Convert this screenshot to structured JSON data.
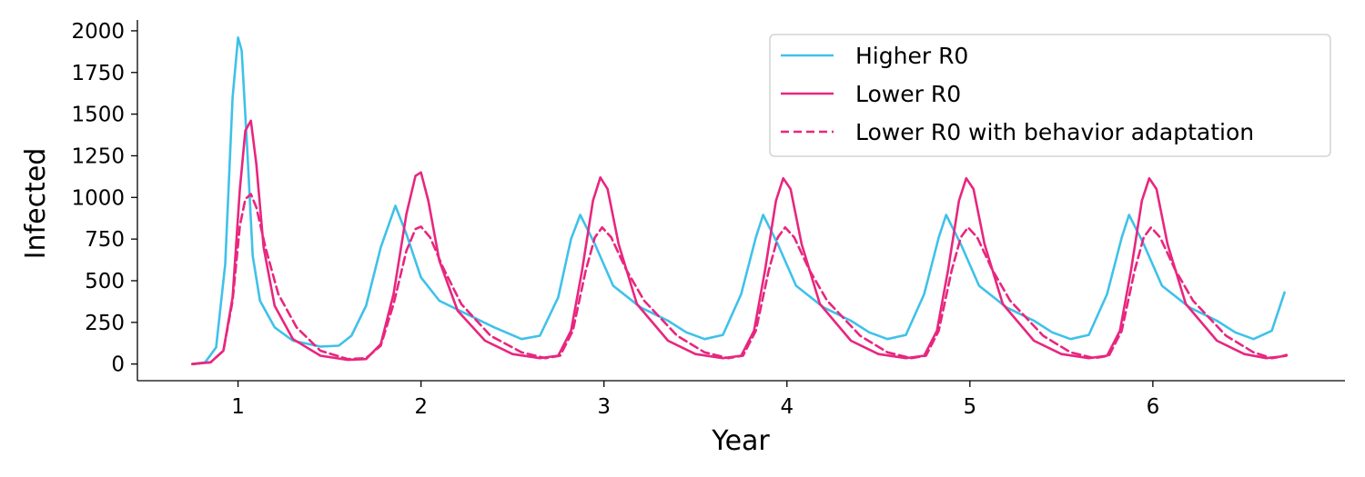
{
  "chart_data": {
    "type": "line",
    "title": "",
    "xlabel": "Year",
    "ylabel": "Infected",
    "xlim": [
      0.45,
      7.05
    ],
    "ylim": [
      -100,
      2065
    ],
    "x_ticks": [
      "1",
      "2",
      "3",
      "4",
      "5",
      "6"
    ],
    "y_ticks": [
      "0",
      "250",
      "500",
      "750",
      "1000",
      "1250",
      "1500",
      "1750",
      "2000"
    ],
    "grid": false,
    "legend_position": "top-right",
    "series": [
      {
        "name": "Higher R0",
        "color": "#3fc1ea",
        "dash": "solid",
        "points": [
          [
            0.75,
            0
          ],
          [
            0.82,
            10
          ],
          [
            0.88,
            100
          ],
          [
            0.93,
            600
          ],
          [
            0.97,
            1600
          ],
          [
            1.0,
            1960
          ],
          [
            1.02,
            1880
          ],
          [
            1.05,
            1300
          ],
          [
            1.08,
            650
          ],
          [
            1.12,
            380
          ],
          [
            1.2,
            220
          ],
          [
            1.3,
            140
          ],
          [
            1.45,
            105
          ],
          [
            1.55,
            110
          ],
          [
            1.62,
            170
          ],
          [
            1.7,
            350
          ],
          [
            1.78,
            700
          ],
          [
            1.86,
            950
          ],
          [
            1.92,
            780
          ],
          [
            2.0,
            520
          ],
          [
            2.1,
            380
          ],
          [
            2.25,
            300
          ],
          [
            2.4,
            220
          ],
          [
            2.55,
            150
          ],
          [
            2.65,
            170
          ],
          [
            2.75,
            400
          ],
          [
            2.82,
            750
          ],
          [
            2.87,
            895
          ],
          [
            2.95,
            720
          ],
          [
            3.05,
            470
          ],
          [
            3.2,
            340
          ],
          [
            3.35,
            260
          ],
          [
            3.45,
            190
          ],
          [
            3.55,
            150
          ],
          [
            3.65,
            175
          ],
          [
            3.75,
            420
          ],
          [
            3.83,
            760
          ],
          [
            3.87,
            895
          ],
          [
            3.95,
            720
          ],
          [
            4.05,
            470
          ],
          [
            4.2,
            340
          ],
          [
            4.35,
            260
          ],
          [
            4.45,
            190
          ],
          [
            4.55,
            150
          ],
          [
            4.65,
            175
          ],
          [
            4.75,
            420
          ],
          [
            4.83,
            760
          ],
          [
            4.87,
            895
          ],
          [
            4.95,
            720
          ],
          [
            5.05,
            470
          ],
          [
            5.2,
            340
          ],
          [
            5.35,
            260
          ],
          [
            5.45,
            190
          ],
          [
            5.55,
            150
          ],
          [
            5.65,
            175
          ],
          [
            5.75,
            420
          ],
          [
            5.83,
            760
          ],
          [
            5.87,
            895
          ],
          [
            5.95,
            720
          ],
          [
            6.05,
            470
          ],
          [
            6.2,
            340
          ],
          [
            6.35,
            260
          ],
          [
            6.45,
            190
          ],
          [
            6.55,
            150
          ],
          [
            6.65,
            200
          ],
          [
            6.72,
            430
          ]
        ]
      },
      {
        "name": "Lower R0",
        "color": "#e8267f",
        "dash": "solid",
        "points": [
          [
            0.75,
            0
          ],
          [
            0.85,
            10
          ],
          [
            0.92,
            80
          ],
          [
            0.97,
            400
          ],
          [
            1.01,
            1050
          ],
          [
            1.04,
            1400
          ],
          [
            1.07,
            1460
          ],
          [
            1.1,
            1200
          ],
          [
            1.14,
            700
          ],
          [
            1.2,
            350
          ],
          [
            1.3,
            150
          ],
          [
            1.45,
            50
          ],
          [
            1.6,
            25
          ],
          [
            1.7,
            30
          ],
          [
            1.78,
            120
          ],
          [
            1.85,
            420
          ],
          [
            1.92,
            900
          ],
          [
            1.97,
            1130
          ],
          [
            2.0,
            1150
          ],
          [
            2.04,
            980
          ],
          [
            2.1,
            620
          ],
          [
            2.2,
            320
          ],
          [
            2.35,
            140
          ],
          [
            2.5,
            60
          ],
          [
            2.65,
            35
          ],
          [
            2.75,
            50
          ],
          [
            2.82,
            200
          ],
          [
            2.88,
            560
          ],
          [
            2.94,
            980
          ],
          [
            2.98,
            1120
          ],
          [
            3.02,
            1050
          ],
          [
            3.08,
            720
          ],
          [
            3.18,
            360
          ],
          [
            3.35,
            140
          ],
          [
            3.5,
            60
          ],
          [
            3.65,
            35
          ],
          [
            3.75,
            50
          ],
          [
            3.82,
            200
          ],
          [
            3.88,
            560
          ],
          [
            3.94,
            980
          ],
          [
            3.98,
            1115
          ],
          [
            4.02,
            1050
          ],
          [
            4.08,
            720
          ],
          [
            4.18,
            360
          ],
          [
            4.35,
            140
          ],
          [
            4.5,
            60
          ],
          [
            4.65,
            35
          ],
          [
            4.75,
            50
          ],
          [
            4.82,
            200
          ],
          [
            4.88,
            560
          ],
          [
            4.94,
            980
          ],
          [
            4.98,
            1115
          ],
          [
            5.02,
            1050
          ],
          [
            5.08,
            720
          ],
          [
            5.18,
            360
          ],
          [
            5.35,
            140
          ],
          [
            5.5,
            60
          ],
          [
            5.65,
            35
          ],
          [
            5.75,
            50
          ],
          [
            5.82,
            200
          ],
          [
            5.88,
            560
          ],
          [
            5.94,
            980
          ],
          [
            5.98,
            1115
          ],
          [
            6.02,
            1050
          ],
          [
            6.08,
            720
          ],
          [
            6.18,
            360
          ],
          [
            6.35,
            140
          ],
          [
            6.5,
            60
          ],
          [
            6.62,
            35
          ],
          [
            6.7,
            45
          ],
          [
            6.73,
            55
          ]
        ]
      },
      {
        "name": "Lower R0 with behavior adaptation",
        "color": "#e8267f",
        "dash": "dashed",
        "points": [
          [
            0.75,
            0
          ],
          [
            0.85,
            10
          ],
          [
            0.92,
            80
          ],
          [
            0.97,
            380
          ],
          [
            1.01,
            830
          ],
          [
            1.04,
            990
          ],
          [
            1.07,
            1020
          ],
          [
            1.1,
            940
          ],
          [
            1.15,
            700
          ],
          [
            1.22,
            420
          ],
          [
            1.32,
            220
          ],
          [
            1.45,
            80
          ],
          [
            1.6,
            30
          ],
          [
            1.7,
            35
          ],
          [
            1.78,
            110
          ],
          [
            1.85,
            360
          ],
          [
            1.92,
            680
          ],
          [
            1.97,
            810
          ],
          [
            2.0,
            825
          ],
          [
            2.05,
            760
          ],
          [
            2.12,
            580
          ],
          [
            2.22,
            360
          ],
          [
            2.38,
            170
          ],
          [
            2.55,
            70
          ],
          [
            2.68,
            35
          ],
          [
            2.76,
            50
          ],
          [
            2.83,
            200
          ],
          [
            2.9,
            560
          ],
          [
            2.95,
            760
          ],
          [
            2.99,
            820
          ],
          [
            3.04,
            760
          ],
          [
            3.12,
            570
          ],
          [
            3.22,
            380
          ],
          [
            3.4,
            170
          ],
          [
            3.55,
            70
          ],
          [
            3.68,
            35
          ],
          [
            3.76,
            50
          ],
          [
            3.83,
            200
          ],
          [
            3.9,
            560
          ],
          [
            3.95,
            760
          ],
          [
            3.99,
            820
          ],
          [
            4.04,
            760
          ],
          [
            4.12,
            570
          ],
          [
            4.22,
            380
          ],
          [
            4.4,
            170
          ],
          [
            4.55,
            70
          ],
          [
            4.68,
            35
          ],
          [
            4.76,
            50
          ],
          [
            4.83,
            200
          ],
          [
            4.9,
            560
          ],
          [
            4.95,
            760
          ],
          [
            4.99,
            820
          ],
          [
            5.04,
            760
          ],
          [
            5.12,
            570
          ],
          [
            5.22,
            380
          ],
          [
            5.4,
            170
          ],
          [
            5.55,
            70
          ],
          [
            5.68,
            35
          ],
          [
            5.76,
            50
          ],
          [
            5.83,
            200
          ],
          [
            5.9,
            560
          ],
          [
            5.95,
            760
          ],
          [
            5.99,
            820
          ],
          [
            6.04,
            760
          ],
          [
            6.12,
            570
          ],
          [
            6.22,
            380
          ],
          [
            6.4,
            170
          ],
          [
            6.55,
            70
          ],
          [
            6.65,
            35
          ],
          [
            6.73,
            50
          ]
        ]
      }
    ]
  }
}
